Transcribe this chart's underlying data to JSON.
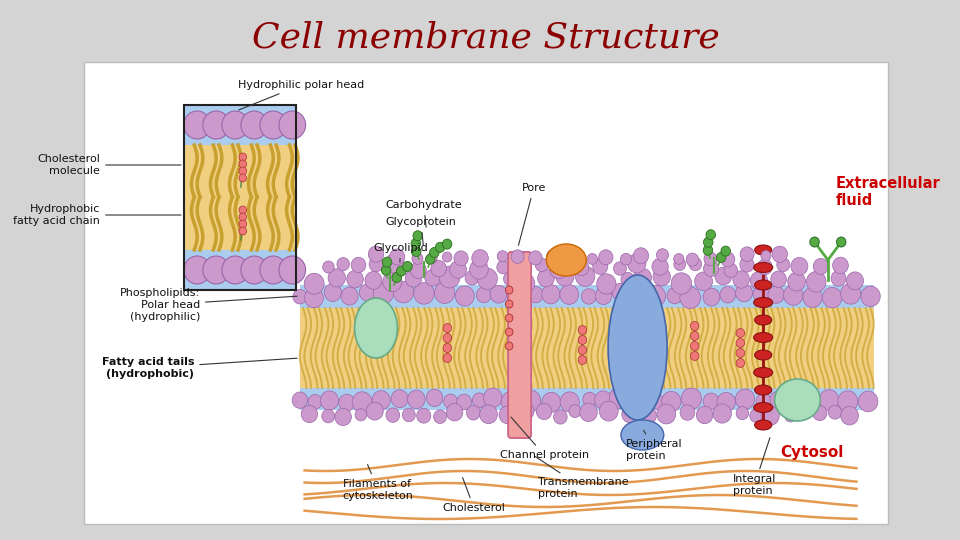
{
  "title": "Cell membrane Structure",
  "title_color": "#8B0000",
  "title_fontsize": 26,
  "bg_color": "#d4d4d4",
  "panel_color": "#ffffff",
  "labels": {
    "hydrophilic_polar_head": "Hydrophilic polar head",
    "cholesterol_molecule": "Cholesterol\nmolecule",
    "hydrophobic_fatty_acid": "Hydrophobic\nfatty acid chain",
    "phospholipids": "Phospholipids:\nPolar head\n(hydrophilic)",
    "fatty_acid_tails": "Fatty acid tails\n(hydrophobic)",
    "pore": "Pore",
    "carbohydrate": "Carbohydrate",
    "glycoprotein": "Glycoprotein",
    "glycolipid": "Glycolipid",
    "extracellular": "Extracellular\nfluid",
    "cytosol": "Cytosol",
    "channel_protein": "Channel protein",
    "transmembrane": "Transmembrane\nprotein",
    "peripheral": "Peripheral\nprotein",
    "integral": "Integral\nprotein",
    "filaments": "Filaments of\ncytoskeleton",
    "cholesterol_bottom": "Cholesterol"
  },
  "colors": {
    "phospholipid_head": "#cc99cc",
    "phospholipid_head_edge": "#9966aa",
    "fatty_acid": "#f0d080",
    "membrane_bg": "#aaccee",
    "channel_protein": "#f0a0a0",
    "blue_protein": "#88aadd",
    "green_protein_light": "#aaddbb",
    "green_protein_dark": "#66aa88",
    "orange_protein": "#ee9944",
    "red_helix": "#cc2222",
    "green_chain": "#66aa55",
    "cholesterol_bead": "#ee7777",
    "cytoskeleton": "#dd8833",
    "inset_border": "#222222",
    "bg_gray": "#d4d4d4"
  }
}
